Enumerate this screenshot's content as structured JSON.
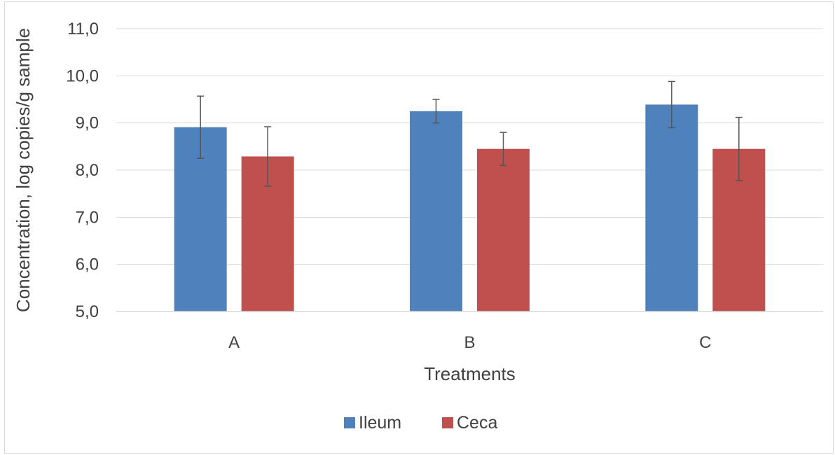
{
  "chart_data": {
    "type": "bar",
    "title": "",
    "xlabel": "Treatments",
    "ylabel": "Concentration, log copies/g sample",
    "categories": [
      "A",
      "B",
      "C"
    ],
    "ylim": [
      5.0,
      11.0
    ],
    "yticks": [
      5.0,
      6.0,
      7.0,
      8.0,
      9.0,
      10.0,
      11.0
    ],
    "ytick_labels": [
      "5,0",
      "6,0",
      "7,0",
      "8,0",
      "9,0",
      "10,0",
      "11,0"
    ],
    "grid": true,
    "legend_position": "bottom",
    "series": [
      {
        "name": "Ileum",
        "color": "#4f81bd",
        "values": [
          8.91,
          9.25,
          9.39
        ],
        "errors": [
          0.66,
          0.25,
          0.49
        ]
      },
      {
        "name": "Ceca",
        "color": "#c0504d",
        "values": [
          8.29,
          8.45,
          8.45
        ],
        "errors": [
          0.63,
          0.35,
          0.67
        ]
      }
    ]
  }
}
